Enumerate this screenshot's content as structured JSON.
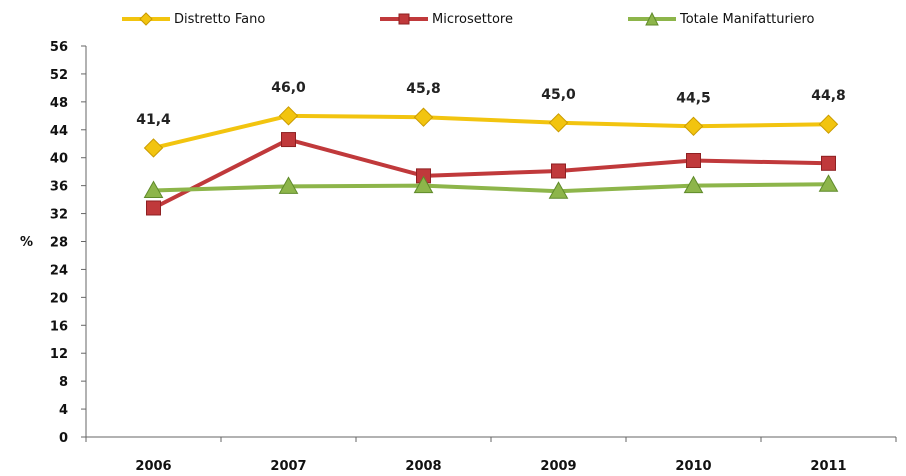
{
  "chart_data": {
    "type": "line",
    "title": "",
    "xlabel": "",
    "ylabel": "%",
    "ylim": [
      0,
      56
    ],
    "yticks": [
      0,
      4,
      8,
      12,
      16,
      20,
      24,
      28,
      32,
      36,
      40,
      44,
      48,
      52,
      56
    ],
    "grid": false,
    "legend_position": "top",
    "categories": [
      "2006",
      "2007",
      "2008",
      "2009",
      "2010",
      "2011"
    ],
    "series": [
      {
        "name": "Distretto Fano",
        "color": "#f2c40f",
        "marker": "diamond",
        "values": [
          41.4,
          46.0,
          45.8,
          45.0,
          44.5,
          44.8
        ],
        "data_labels": [
          "41,4",
          "46,0",
          "45,8",
          "45,0",
          "44,5",
          "44,8"
        ]
      },
      {
        "name": "Microsettore",
        "color": "#c0393b",
        "marker": "square",
        "values": [
          32.8,
          42.6,
          37.4,
          38.1,
          39.6,
          39.2
        ]
      },
      {
        "name": "Totale Manifatturiero",
        "color": "#8db54a",
        "marker": "triangle",
        "values": [
          35.3,
          35.9,
          36.0,
          35.2,
          36.0,
          36.2
        ]
      }
    ]
  }
}
